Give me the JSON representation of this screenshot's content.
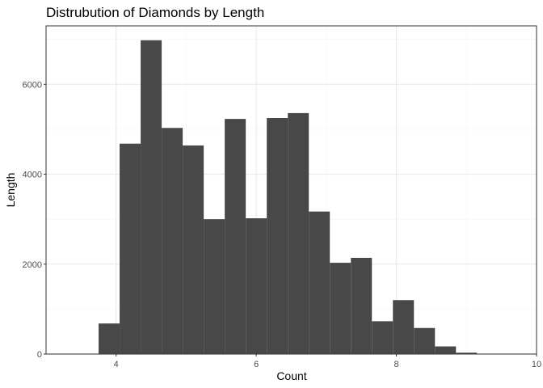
{
  "colors": {
    "bar": "#484848",
    "panel_border": "#333333",
    "grid_major": "#ebebeb",
    "grid_minor": "#f5f5f5",
    "background": "#ffffff"
  },
  "chart_data": {
    "type": "bar",
    "title": "Distrubution of Diamonds by Length",
    "xlabel": "Count",
    "ylabel": "Length",
    "xlim": [
      3.0,
      10.0
    ],
    "ylim": [
      0,
      7300
    ],
    "x_ticks": [
      4,
      6,
      8,
      10
    ],
    "y_ticks": [
      0,
      2000,
      4000,
      6000
    ],
    "x_tick_labels": [
      "4",
      "6",
      "8",
      "10"
    ],
    "y_tick_labels": [
      "0",
      "2000",
      "4000",
      "6000"
    ],
    "grid": true,
    "bin_width": 0.3,
    "bins": [
      {
        "x0": 3.75,
        "x1": 4.05,
        "count": 680
      },
      {
        "x0": 4.05,
        "x1": 4.35,
        "count": 4680
      },
      {
        "x0": 4.35,
        "x1": 4.65,
        "count": 6980
      },
      {
        "x0": 4.65,
        "x1": 4.95,
        "count": 5030
      },
      {
        "x0": 4.95,
        "x1": 5.25,
        "count": 4640
      },
      {
        "x0": 5.25,
        "x1": 5.55,
        "count": 3000
      },
      {
        "x0": 5.55,
        "x1": 5.85,
        "count": 5230
      },
      {
        "x0": 5.85,
        "x1": 6.15,
        "count": 3020
      },
      {
        "x0": 6.15,
        "x1": 6.45,
        "count": 5250
      },
      {
        "x0": 6.45,
        "x1": 6.75,
        "count": 5360
      },
      {
        "x0": 6.75,
        "x1": 7.05,
        "count": 3170
      },
      {
        "x0": 7.05,
        "x1": 7.35,
        "count": 2030
      },
      {
        "x0": 7.35,
        "x1": 7.65,
        "count": 2140
      },
      {
        "x0": 7.65,
        "x1": 7.95,
        "count": 730
      },
      {
        "x0": 7.95,
        "x1": 8.25,
        "count": 1200
      },
      {
        "x0": 8.25,
        "x1": 8.55,
        "count": 580
      },
      {
        "x0": 8.55,
        "x1": 8.85,
        "count": 170
      },
      {
        "x0": 8.85,
        "x1": 9.15,
        "count": 30
      },
      {
        "x0": 9.15,
        "x1": 9.45,
        "count": 5
      }
    ]
  }
}
